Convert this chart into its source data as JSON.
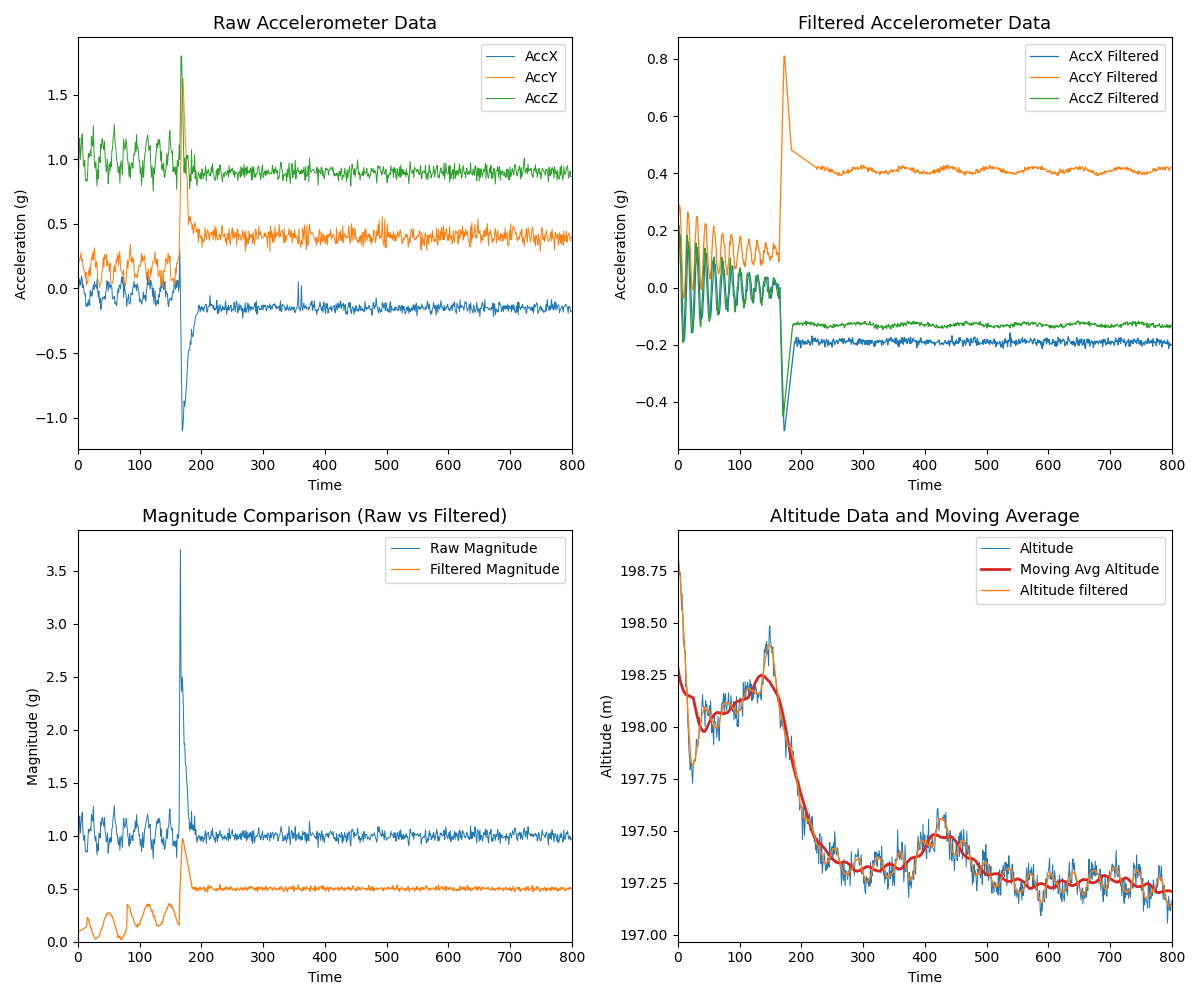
{
  "titles": [
    "Raw Accelerometer Data",
    "Filtered Accelerometer Data",
    "Magnitude Comparison (Raw vs Filtered)",
    "Altitude Data and Moving Average"
  ],
  "xlabels": [
    "Time",
    "Time",
    "Time",
    "Time"
  ],
  "ylabels": [
    "Acceleration (g)",
    "Acceleration (g)",
    "Magnitude (g)",
    "Altitude (m)"
  ],
  "colors": {
    "accx": "#1f77b4",
    "accy": "#ff7f0e",
    "accz": "#2ca02c",
    "raw_mag": "#1f77b4",
    "filt_mag": "#ff7f0e",
    "altitude": "#1f77b4",
    "moving_avg": "#d62728",
    "alt_filtered": "#ff7f0e"
  },
  "legend_labels": {
    "raw": [
      "AccX",
      "AccY",
      "AccZ"
    ],
    "filtered": [
      "AccX Filtered",
      "AccY Filtered",
      "AccZ Filtered"
    ],
    "magnitude": [
      "Raw Magnitude",
      "Filtered Magnitude"
    ],
    "altitude": [
      "Altitude",
      "Moving Avg Altitude",
      "Altitude filtered"
    ]
  },
  "xlim": [
    0,
    800
  ],
  "figsize": [
    12,
    10
  ],
  "dpi": 100,
  "seed": 42
}
